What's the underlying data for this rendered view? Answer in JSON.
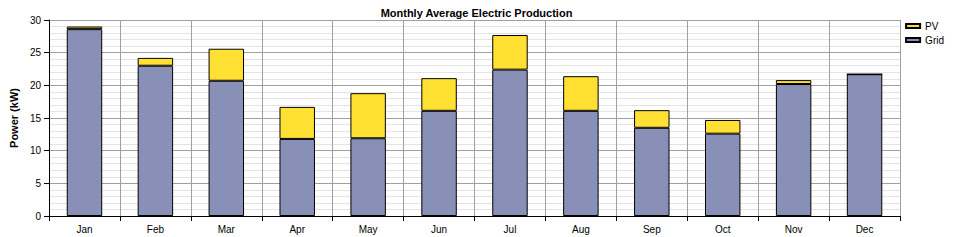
{
  "chart_data": {
    "type": "bar",
    "title": "Monthly Average Electric Production",
    "y_label": "Power (kW)",
    "categories": [
      "Jan",
      "Feb",
      "Mar",
      "Apr",
      "May",
      "Jun",
      "Jul",
      "Aug",
      "Sep",
      "Oct",
      "Nov",
      "Dec"
    ],
    "series": [
      {
        "name": "Grid",
        "color": "#8890b8",
        "values": [
          28.6,
          23.0,
          20.7,
          11.8,
          11.9,
          16.1,
          22.4,
          16.1,
          13.5,
          12.6,
          20.2,
          21.7
        ]
      },
      {
        "name": "PV",
        "color": "#ffe033",
        "values": [
          0.4,
          1.2,
          4.9,
          4.9,
          6.9,
          5.0,
          5.3,
          5.3,
          2.7,
          2.1,
          0.6,
          0.0
        ]
      }
    ],
    "stacked": true,
    "ylim": [
      0,
      30
    ],
    "yticks": [
      0,
      5,
      10,
      15,
      20,
      25,
      30
    ],
    "grid": true,
    "legend": "top-right"
  }
}
